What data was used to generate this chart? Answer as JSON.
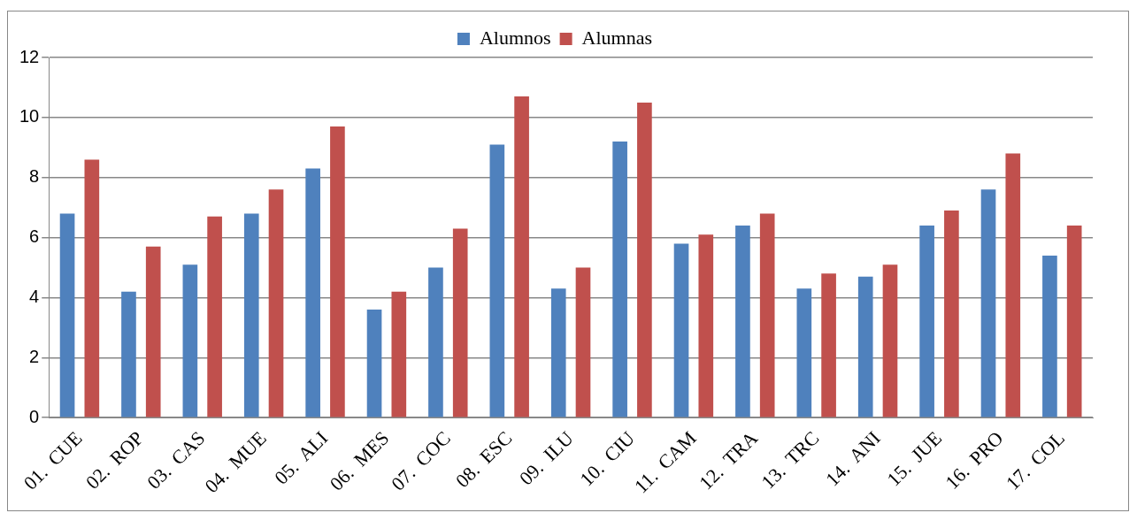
{
  "chart_data": {
    "type": "bar",
    "categories": [
      "01.  CUE",
      "02.  ROP",
      "03.  CAS",
      "04.  MUE",
      "05.  ALI",
      "06.  MES",
      "07.  COC",
      "08.  ESC",
      "09.  ILU",
      "10.  CIU",
      "11.  CAM",
      "12.  TRA",
      "13.  TRC",
      "14.  ANI",
      "15.  JUE",
      "16.  PRO",
      "17.  COL"
    ],
    "series": [
      {
        "name": "Alumnos",
        "color": "#4f81bd",
        "values": [
          6.8,
          4.2,
          5.1,
          6.8,
          8.3,
          3.6,
          5.0,
          9.1,
          4.3,
          9.2,
          5.8,
          6.4,
          4.3,
          4.7,
          6.4,
          7.6,
          5.4
        ]
      },
      {
        "name": "Alumnas",
        "color": "#c0504d",
        "values": [
          8.6,
          5.7,
          6.7,
          7.6,
          9.7,
          4.2,
          6.3,
          10.7,
          5.0,
          10.5,
          6.1,
          6.8,
          4.8,
          5.1,
          6.9,
          8.8,
          6.4
        ]
      }
    ],
    "ylim": [
      0,
      12
    ],
    "yticks": [
      0,
      2,
      4,
      6,
      8,
      10,
      12
    ],
    "grid": "y",
    "legend": "top"
  }
}
